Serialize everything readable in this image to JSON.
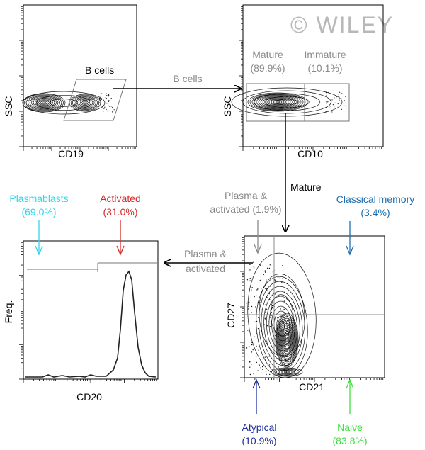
{
  "watermark": "© WILEY",
  "gate_label_bcells": "B cells",
  "arrow_label_bcells": "B cells",
  "arrow_label_mature": "Mature",
  "arrow_label_plasma_line1": "Plasma &",
  "arrow_label_plasma_line2": "activated",
  "panels": {
    "cd19": {
      "xlabel": "CD19",
      "ylabel": "SSC"
    },
    "cd10": {
      "xlabel": "CD10",
      "ylabel": "SSC",
      "mature_label": "Mature",
      "mature_pct": "(89.9%)",
      "immature_label": "Immature",
      "immature_pct": "(10.1%)"
    },
    "cd21": {
      "xlabel": "CD21",
      "ylabel": "CD27",
      "plasma_line1": "Plasma &",
      "plasma_line2": "activated (1.9%)",
      "classical_label": "Classical memory",
      "classical_pct": "(3.4%)",
      "atypical_label": "Atypical",
      "atypical_pct": "(10.9%)",
      "naive_label": "Naive",
      "naive_pct": "(83.8%)"
    },
    "cd20": {
      "xlabel": "CD20",
      "ylabel": "Freq.",
      "plasmablasts_label": "Plasmablasts",
      "plasmablasts_pct": "(69.0%)",
      "activated_label": "Activated",
      "activated_pct": "(31.0%)"
    }
  },
  "colors": {
    "plasmablasts": "#33d6e8",
    "activated": "#d42a2a",
    "classical": "#1f6fb0",
    "atypical": "#1f2f9e",
    "naive": "#3ee03e",
    "gray_text": "#8a8a8a"
  }
}
